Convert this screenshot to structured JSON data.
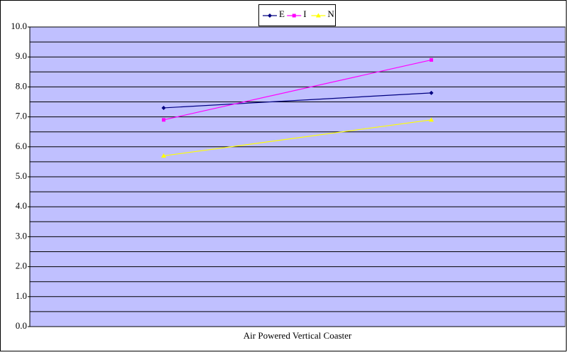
{
  "chart_data": {
    "type": "line",
    "categories": [
      null,
      null
    ],
    "x_label": "Air Powered Vertical Coaster",
    "series": [
      {
        "name": "E",
        "color": "#000080",
        "marker": "diamond",
        "values": [
          7.3,
          7.8
        ]
      },
      {
        "name": "I",
        "color": "#ff00ff",
        "marker": "square",
        "values": [
          6.9,
          8.9
        ]
      },
      {
        "name": "N",
        "color": "#ffff00",
        "marker": "triangle",
        "values": [
          5.7,
          6.9
        ]
      }
    ],
    "ylim": [
      0,
      10
    ],
    "yticks": [
      {
        "value": 0,
        "label": "0.0"
      },
      {
        "value": 1,
        "label": "1.0"
      },
      {
        "value": 2,
        "label": "2.0"
      },
      {
        "value": 3,
        "label": "3.0"
      },
      {
        "value": 4,
        "label": "4.0"
      },
      {
        "value": 5,
        "label": "5.0"
      },
      {
        "value": 6,
        "label": "6.0"
      },
      {
        "value": 7,
        "label": "7.0"
      },
      {
        "value": 8,
        "label": "8.0"
      },
      {
        "value": 9,
        "label": "9.0"
      },
      {
        "value": 10,
        "label": "10.0"
      }
    ],
    "yminorticks": [
      0.5,
      1.5,
      2.5,
      3.5,
      4.5,
      5.5,
      6.5,
      7.5,
      8.5,
      9.5
    ],
    "grid": true,
    "plot_background": "#c0c0ff",
    "legend": "top"
  }
}
